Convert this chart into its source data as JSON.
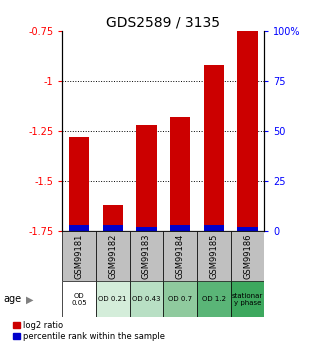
{
  "title": "GDS2589 / 3135",
  "samples": [
    "GSM99181",
    "GSM99182",
    "GSM99183",
    "GSM99184",
    "GSM99185",
    "GSM99186"
  ],
  "log2_ratio": [
    -1.28,
    -1.62,
    -1.22,
    -1.18,
    -0.92,
    -0.75
  ],
  "percentile_rank": [
    3,
    3,
    2,
    3,
    3,
    2
  ],
  "age_labels": [
    "OD\n0.05",
    "OD 0.21",
    "OD 0.43",
    "OD 0.7",
    "OD 1.2",
    "stationar\ny phase"
  ],
  "age_colors": [
    "#ffffff",
    "#d4edda",
    "#b8dfc4",
    "#8fca9e",
    "#5ab577",
    "#3da85e"
  ],
  "ylim_left": [
    -1.75,
    -0.75
  ],
  "ylim_right": [
    0,
    100
  ],
  "yticks_left": [
    -1.75,
    -1.5,
    -1.25,
    -1.0,
    -0.75
  ],
  "yticks_right": [
    0,
    25,
    50,
    75,
    100
  ],
  "ytick_labels_left": [
    "-1.75",
    "-1.5",
    "-1.25",
    "-1",
    "-0.75"
  ],
  "ytick_labels_right": [
    "0",
    "25",
    "50",
    "75",
    "100%"
  ],
  "bar_color_red": "#cc0000",
  "bar_color_blue": "#0000cc",
  "sample_bg_color": "#c0c0c0",
  "title_fontsize": 10,
  "tick_fontsize": 7,
  "label_fontsize": 6.5
}
